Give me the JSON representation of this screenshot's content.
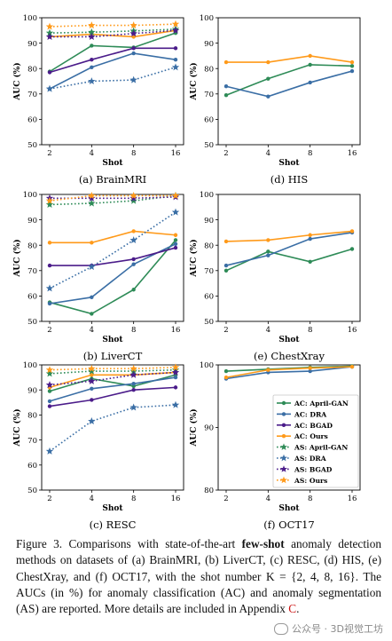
{
  "shared": {
    "x_ticks": [
      2,
      4,
      8,
      16
    ],
    "xlabel": "Shot",
    "ylabel": "AUC (%)"
  },
  "legend": {
    "placement": "lower-right of panel (f)",
    "entries": [
      {
        "label": "AC: April-GAN",
        "color": "#2e8b57",
        "style": "solid",
        "marker": "circle"
      },
      {
        "label": "AC: DRA",
        "color": "#3a6ea5",
        "style": "solid",
        "marker": "circle"
      },
      {
        "label": "AC: BGAD",
        "color": "#4b1c8a",
        "style": "solid",
        "marker": "circle"
      },
      {
        "label": "AC: Ours",
        "color": "#ff9a1a",
        "style": "solid",
        "marker": "circle"
      },
      {
        "label": "AS: April-GAN",
        "color": "#2e8b57",
        "style": "dotted",
        "marker": "star"
      },
      {
        "label": "AS: DRA",
        "color": "#3a6ea5",
        "style": "dotted",
        "marker": "star"
      },
      {
        "label": "AS: BGAD",
        "color": "#4b1c8a",
        "style": "dotted",
        "marker": "star"
      },
      {
        "label": "AS: Ours",
        "color": "#ff9a1a",
        "style": "dotted",
        "marker": "star"
      }
    ]
  },
  "chart_data": [
    {
      "id": "a",
      "type": "line",
      "caption": "(a) BrainMRI",
      "x": [
        2,
        4,
        8,
        16
      ],
      "ylim": [
        50,
        100
      ],
      "yticks": [
        50,
        60,
        70,
        80,
        90,
        100
      ],
      "series": [
        {
          "name": "AC: April-GAN",
          "color": "#2e8b57",
          "style": "solid",
          "marker": "circle",
          "values": [
            78.8,
            89.0,
            88.3,
            94.0
          ]
        },
        {
          "name": "AC: DRA",
          "color": "#3a6ea5",
          "style": "solid",
          "marker": "circle",
          "values": [
            72.0,
            80.5,
            86.0,
            83.5
          ]
        },
        {
          "name": "AC: BGAD",
          "color": "#4b1c8a",
          "style": "solid",
          "marker": "circle",
          "values": [
            78.5,
            83.5,
            88.0,
            88.0
          ]
        },
        {
          "name": "AC: Ours",
          "color": "#ff9a1a",
          "style": "solid",
          "marker": "circle",
          "values": [
            92.5,
            93.5,
            92.5,
            95.0
          ]
        },
        {
          "name": "AS: April-GAN",
          "color": "#2e8b57",
          "style": "dotted",
          "marker": "star",
          "values": [
            94.0,
            94.3,
            94.8,
            95.5
          ]
        },
        {
          "name": "AS: DRA",
          "color": "#3a6ea5",
          "style": "dotted",
          "marker": "star",
          "values": [
            72.0,
            75.0,
            75.5,
            80.5
          ]
        },
        {
          "name": "AS: BGAD",
          "color": "#4b1c8a",
          "style": "dotted",
          "marker": "star",
          "values": [
            92.5,
            92.5,
            93.8,
            95.0
          ]
        },
        {
          "name": "AS: Ours",
          "color": "#ff9a1a",
          "style": "dotted",
          "marker": "star",
          "values": [
            96.5,
            97.0,
            97.0,
            97.5
          ]
        }
      ]
    },
    {
      "id": "d",
      "type": "line",
      "caption": "(d) HIS",
      "x": [
        2,
        4,
        8,
        16
      ],
      "ylim": [
        50,
        100
      ],
      "yticks": [
        50,
        60,
        70,
        80,
        90,
        100
      ],
      "series": [
        {
          "name": "AC: April-GAN",
          "color": "#2e8b57",
          "style": "solid",
          "marker": "circle",
          "values": [
            69.5,
            76.0,
            81.5,
            81.0
          ]
        },
        {
          "name": "AC: DRA",
          "color": "#3a6ea5",
          "style": "solid",
          "marker": "circle",
          "values": [
            73.0,
            69.0,
            74.5,
            79.0
          ]
        },
        {
          "name": "AC: Ours",
          "color": "#ff9a1a",
          "style": "solid",
          "marker": "circle",
          "values": [
            82.5,
            82.5,
            85.0,
            82.5
          ]
        }
      ]
    },
    {
      "id": "b",
      "type": "line",
      "caption": "(b) LiverCT",
      "x": [
        2,
        4,
        8,
        16
      ],
      "ylim": [
        50,
        100
      ],
      "yticks": [
        50,
        60,
        70,
        80,
        90,
        100
      ],
      "series": [
        {
          "name": "AC: April-GAN",
          "color": "#2e8b57",
          "style": "solid",
          "marker": "circle",
          "values": [
            57.5,
            53.0,
            62.5,
            82.0
          ]
        },
        {
          "name": "AC: DRA",
          "color": "#3a6ea5",
          "style": "solid",
          "marker": "circle",
          "values": [
            57.0,
            59.5,
            72.5,
            80.5
          ]
        },
        {
          "name": "AC: BGAD",
          "color": "#4b1c8a",
          "style": "solid",
          "marker": "circle",
          "values": [
            72.0,
            72.0,
            74.5,
            79.0
          ]
        },
        {
          "name": "AC: Ours",
          "color": "#ff9a1a",
          "style": "solid",
          "marker": "circle",
          "values": [
            81.0,
            81.0,
            85.5,
            84.0
          ]
        },
        {
          "name": "AS: April-GAN",
          "color": "#2e8b57",
          "style": "dotted",
          "marker": "star",
          "values": [
            96.0,
            96.5,
            97.5,
            99.5
          ]
        },
        {
          "name": "AS: DRA",
          "color": "#3a6ea5",
          "style": "dotted",
          "marker": "star",
          "values": [
            63.0,
            71.5,
            82.0,
            93.0
          ]
        },
        {
          "name": "AS: BGAD",
          "color": "#4b1c8a",
          "style": "dotted",
          "marker": "star",
          "values": [
            98.5,
            98.5,
            98.5,
            99.0
          ]
        },
        {
          "name": "AS: Ours",
          "color": "#ff9a1a",
          "style": "dotted",
          "marker": "star",
          "values": [
            97.5,
            99.5,
            99.5,
            99.5
          ]
        }
      ]
    },
    {
      "id": "e",
      "type": "line",
      "caption": "(e) ChestXray",
      "x": [
        2,
        4,
        8,
        16
      ],
      "ylim": [
        50,
        100
      ],
      "yticks": [
        50,
        60,
        70,
        80,
        90,
        100
      ],
      "series": [
        {
          "name": "AC: April-GAN",
          "color": "#2e8b57",
          "style": "solid",
          "marker": "circle",
          "values": [
            70.0,
            77.5,
            73.5,
            78.5
          ]
        },
        {
          "name": "AC: DRA",
          "color": "#3a6ea5",
          "style": "solid",
          "marker": "circle",
          "values": [
            72.0,
            76.0,
            82.5,
            85.0
          ]
        },
        {
          "name": "AC: Ours",
          "color": "#ff9a1a",
          "style": "solid",
          "marker": "circle",
          "values": [
            81.5,
            82.0,
            84.0,
            85.5
          ]
        }
      ]
    },
    {
      "id": "c",
      "type": "line",
      "caption": "(c) RESC",
      "x": [
        2,
        4,
        8,
        16
      ],
      "ylim": [
        50,
        100
      ],
      "yticks": [
        50,
        60,
        70,
        80,
        90,
        100
      ],
      "series": [
        {
          "name": "AC: April-GAN",
          "color": "#2e8b57",
          "style": "solid",
          "marker": "circle",
          "values": [
            89.5,
            94.5,
            91.5,
            96.0
          ]
        },
        {
          "name": "AC: DRA",
          "color": "#3a6ea5",
          "style": "solid",
          "marker": "circle",
          "values": [
            85.5,
            90.5,
            92.5,
            95.0
          ]
        },
        {
          "name": "AC: BGAD",
          "color": "#4b1c8a",
          "style": "solid",
          "marker": "circle",
          "values": [
            83.5,
            86.0,
            90.0,
            91.0
          ]
        },
        {
          "name": "AC: Ours",
          "color": "#ff9a1a",
          "style": "solid",
          "marker": "circle",
          "values": [
            91.0,
            96.0,
            96.0,
            97.0
          ]
        },
        {
          "name": "AS: April-GAN",
          "color": "#2e8b57",
          "style": "dotted",
          "marker": "star",
          "values": [
            96.5,
            97.5,
            97.5,
            98.0
          ]
        },
        {
          "name": "AS: DRA",
          "color": "#3a6ea5",
          "style": "dotted",
          "marker": "star",
          "values": [
            65.5,
            77.5,
            83.0,
            84.0
          ]
        },
        {
          "name": "AS: BGAD",
          "color": "#4b1c8a",
          "style": "dotted",
          "marker": "star",
          "values": [
            92.0,
            93.5,
            96.0,
            97.0
          ]
        },
        {
          "name": "AS: Ours",
          "color": "#ff9a1a",
          "style": "dotted",
          "marker": "star",
          "values": [
            98.0,
            98.5,
            98.5,
            99.0
          ]
        }
      ]
    },
    {
      "id": "f",
      "type": "line",
      "caption": "(f) OCT17",
      "x": [
        2,
        4,
        8,
        16
      ],
      "ylim": [
        80,
        100
      ],
      "yticks": [
        80,
        90,
        100
      ],
      "series": [
        {
          "name": "AC: April-GAN",
          "color": "#2e8b57",
          "style": "solid",
          "marker": "circle",
          "values": [
            99.0,
            99.3,
            99.6,
            99.8
          ]
        },
        {
          "name": "AC: DRA",
          "color": "#3a6ea5",
          "style": "solid",
          "marker": "circle",
          "values": [
            97.8,
            98.8,
            99.0,
            99.7
          ]
        },
        {
          "name": "AC: Ours",
          "color": "#ff9a1a",
          "style": "solid",
          "marker": "circle",
          "values": [
            98.0,
            99.2,
            99.5,
            99.7
          ]
        }
      ]
    }
  ],
  "caption": {
    "p1": "Figure 3.  Comparisons with state-of-the-art ",
    "bold": "few-shot",
    "p2": " anomaly detection methods on datasets of (a) BrainMRI, (b) LiverCT, (c) RESC, (d) HIS, (e) ChestXray, and (f) OCT17, with the shot number K = {2, 4, 8, 16}. The AUCs (in %) for anomaly classification (AC) and anomaly segmentation (AS) are reported. More details are included in Appendix ",
    "appendix": "C",
    "p3": "."
  },
  "watermark": "公众号 · 3D视觉工坊"
}
